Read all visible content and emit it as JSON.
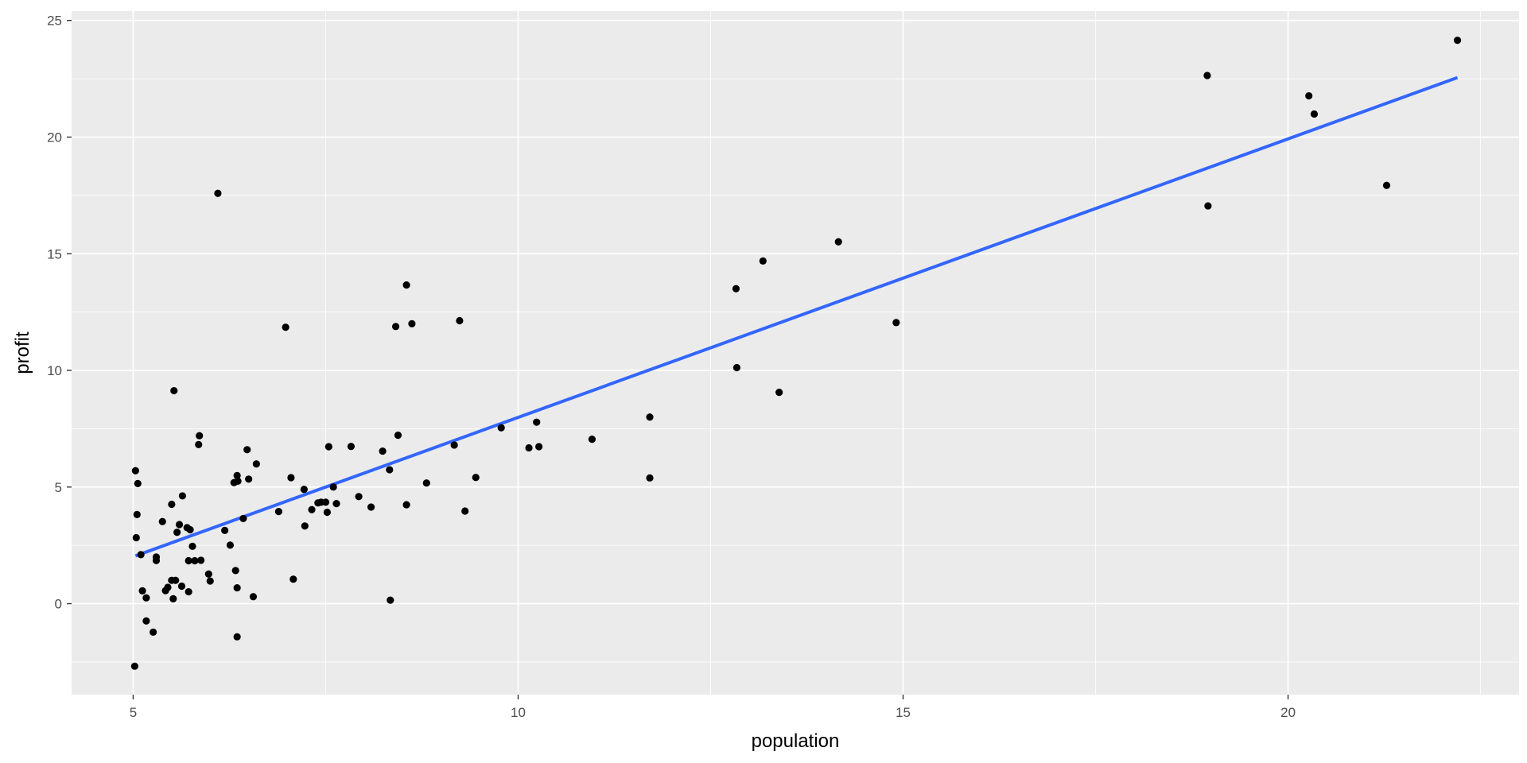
{
  "chart_data": {
    "type": "scatter",
    "xlabel": "population",
    "ylabel": "profit",
    "xlim": [
      4.2,
      23.0
    ],
    "ylim": [
      -3.9,
      25.4
    ],
    "x_ticks": [
      5,
      10,
      15,
      20
    ],
    "x_tick_labels": [
      "5",
      "10",
      "15",
      "20"
    ],
    "y_ticks": [
      0,
      5,
      10,
      15,
      20,
      25
    ],
    "y_tick_labels": [
      "0",
      "5",
      "10",
      "15",
      "20",
      "25"
    ],
    "grid": true,
    "points": [
      [
        5.03,
        5.7
      ],
      [
        5.06,
        5.15
      ],
      [
        5.05,
        3.82
      ],
      [
        5.04,
        2.83
      ],
      [
        5.1,
        2.1
      ],
      [
        5.02,
        -2.68
      ],
      [
        5.12,
        0.55
      ],
      [
        5.17,
        0.25
      ],
      [
        5.17,
        -0.74
      ],
      [
        5.26,
        -1.22
      ],
      [
        5.3,
        2.0
      ],
      [
        5.3,
        1.85
      ],
      [
        5.38,
        3.52
      ],
      [
        5.42,
        0.56
      ],
      [
        5.45,
        0.7
      ],
      [
        5.5,
        4.26
      ],
      [
        5.5,
        1.0
      ],
      [
        5.52,
        0.21
      ],
      [
        5.53,
        9.13
      ],
      [
        5.55,
        1.0
      ],
      [
        5.57,
        3.06
      ],
      [
        5.6,
        3.39
      ],
      [
        5.63,
        0.75
      ],
      [
        5.64,
        4.62
      ],
      [
        5.7,
        3.26
      ],
      [
        5.72,
        1.84
      ],
      [
        5.72,
        0.51
      ],
      [
        5.74,
        3.17
      ],
      [
        5.77,
        2.46
      ],
      [
        5.8,
        1.84
      ],
      [
        5.86,
        7.2
      ],
      [
        5.85,
        6.82
      ],
      [
        5.88,
        1.86
      ],
      [
        5.98,
        1.27
      ],
      [
        6.0,
        0.97
      ],
      [
        6.1,
        17.59
      ],
      [
        6.19,
        3.14
      ],
      [
        6.26,
        2.51
      ],
      [
        6.31,
        5.19
      ],
      [
        6.33,
        1.42
      ],
      [
        6.35,
        5.49
      ],
      [
        6.35,
        0.68
      ],
      [
        6.35,
        -1.42
      ],
      [
        6.36,
        5.25
      ],
      [
        6.43,
        3.65
      ],
      [
        6.48,
        6.6
      ],
      [
        6.5,
        5.34
      ],
      [
        6.56,
        0.3
      ],
      [
        6.6,
        5.99
      ],
      [
        6.89,
        3.95
      ],
      [
        6.98,
        11.85
      ],
      [
        7.05,
        5.4
      ],
      [
        7.08,
        1.05
      ],
      [
        7.22,
        4.9
      ],
      [
        7.23,
        3.33
      ],
      [
        7.32,
        4.03
      ],
      [
        7.4,
        4.32
      ],
      [
        7.44,
        4.35
      ],
      [
        7.5,
        4.35
      ],
      [
        7.52,
        3.92
      ],
      [
        7.54,
        6.73
      ],
      [
        7.6,
        5.0
      ],
      [
        7.64,
        4.29
      ],
      [
        7.83,
        6.74
      ],
      [
        7.93,
        4.59
      ],
      [
        8.09,
        4.14
      ],
      [
        8.24,
        6.54
      ],
      [
        8.33,
        5.74
      ],
      [
        8.34,
        0.15
      ],
      [
        8.41,
        11.88
      ],
      [
        8.44,
        7.22
      ],
      [
        8.55,
        13.66
      ],
      [
        8.55,
        4.24
      ],
      [
        8.62,
        12.0
      ],
      [
        8.81,
        5.17
      ],
      [
        9.17,
        6.8
      ],
      [
        9.24,
        12.13
      ],
      [
        9.31,
        3.97
      ],
      [
        9.45,
        5.41
      ],
      [
        9.78,
        7.54
      ],
      [
        10.14,
        6.68
      ],
      [
        10.24,
        7.78
      ],
      [
        10.27,
        6.73
      ],
      [
        10.96,
        7.05
      ],
      [
        11.71,
        8.0
      ],
      [
        11.71,
        5.39
      ],
      [
        12.83,
        13.5
      ],
      [
        12.84,
        10.12
      ],
      [
        13.18,
        14.69
      ],
      [
        13.39,
        9.06
      ],
      [
        14.16,
        15.51
      ],
      [
        14.91,
        12.05
      ],
      [
        18.95,
        22.64
      ],
      [
        18.96,
        17.05
      ],
      [
        20.27,
        21.77
      ],
      [
        20.34,
        20.99
      ],
      [
        21.28,
        17.93
      ],
      [
        22.2,
        24.15
      ]
    ],
    "trend_line": {
      "x": [
        5.03,
        22.2
      ],
      "y": [
        2.05,
        22.55
      ]
    },
    "colors": {
      "panel": "#ebebeb",
      "grid": "#ffffff",
      "points": "#000000",
      "trend": "#3366ff"
    }
  }
}
